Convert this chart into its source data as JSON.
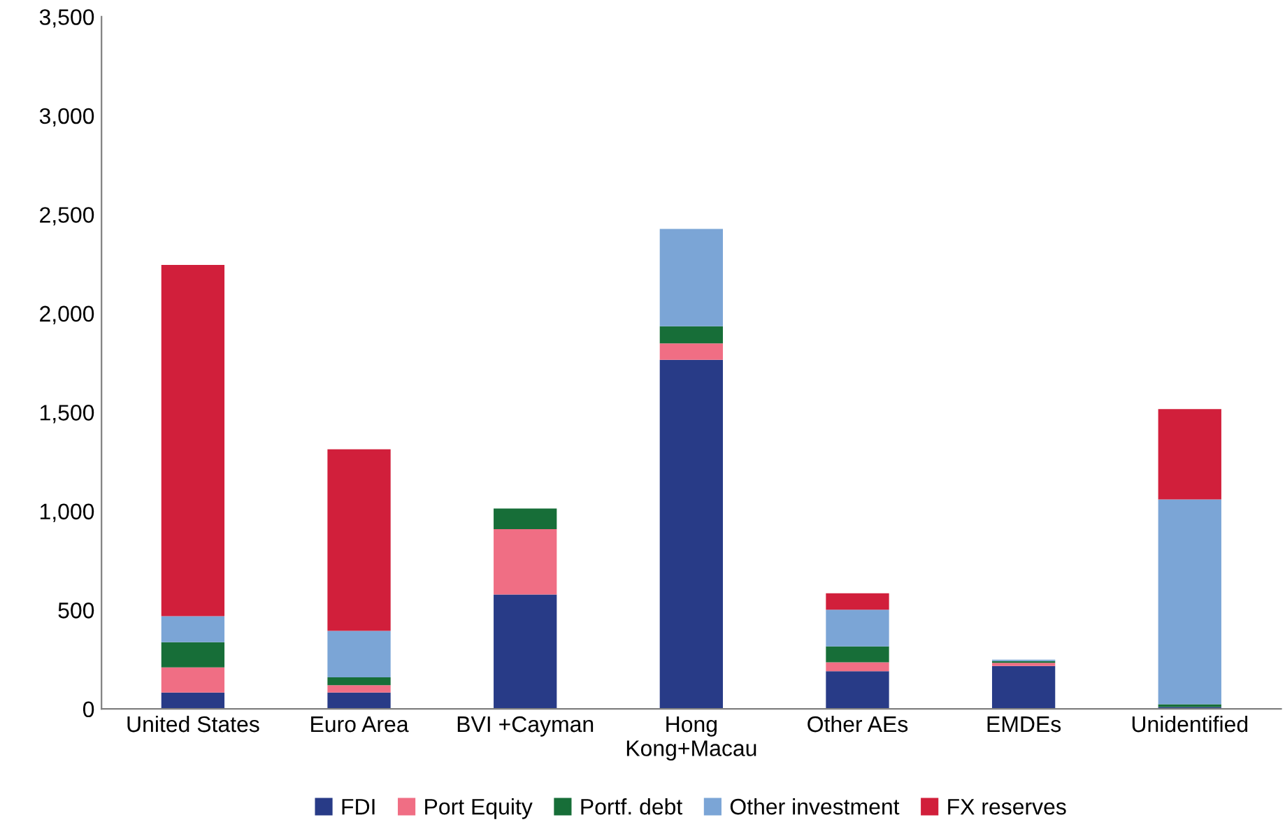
{
  "chart_data": {
    "type": "bar",
    "stacked": true,
    "categories": [
      "United States",
      "Euro Area",
      "BVI +Cayman",
      "Hong\nKong+Macau",
      "Other AEs",
      "EMDEs",
      "Unidentified"
    ],
    "series": [
      {
        "name": "FDI",
        "color": "#283b87",
        "values": [
          83,
          83,
          579,
          1765,
          191,
          217,
          10
        ]
      },
      {
        "name": "Port Equity",
        "color": "#f06e84",
        "values": [
          127,
          37,
          330,
          83,
          45,
          16,
          0
        ]
      },
      {
        "name": "Portf. debt",
        "color": "#176e38",
        "values": [
          127,
          40,
          104,
          87,
          80,
          9,
          14
        ]
      },
      {
        "name": "Other investment",
        "color": "#7ba5d6",
        "values": [
          132,
          235,
          0,
          492,
          186,
          7,
          1035
        ]
      },
      {
        "name": "FX reserves",
        "color": "#d11f3b",
        "values": [
          1776,
          918,
          0,
          0,
          83,
          0,
          457
        ]
      }
    ],
    "ylim": [
      0,
      3500
    ],
    "yticks": [
      0,
      {
        "value": 500,
        "label": "500"
      },
      {
        "value": 1000,
        "label": "1,000"
      },
      {
        "value": 1500,
        "label": "1,500"
      },
      {
        "value": 2000,
        "label": "2,000"
      },
      {
        "value": 2500,
        "label": "2,500"
      },
      {
        "value": 3000,
        "label": "3,000"
      },
      {
        "value": 3500,
        "label": "3,500"
      }
    ],
    "grid": false,
    "legend": "bottom"
  }
}
